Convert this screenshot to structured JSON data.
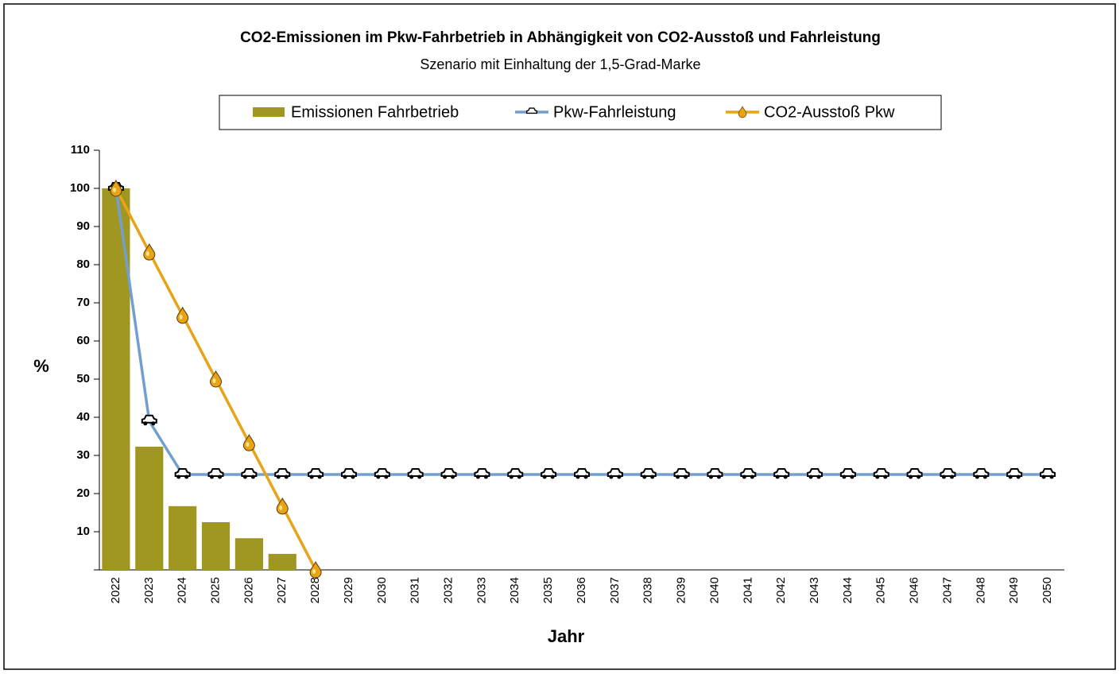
{
  "chart_data": {
    "type": "bar",
    "title": "CO2-Emissionen im Pkw-Fahrbetrieb in Abhängigkeit von CO2-Ausstoß und Fahrleistung",
    "subtitle": "Szenario mit Einhaltung der 1,5-Grad-Marke",
    "x_label": "Jahr",
    "y_label": "%",
    "categories": [
      "2022",
      "2023",
      "2024",
      "2025",
      "2026",
      "2027",
      "2028",
      "2029",
      "2030",
      "2031",
      "2032",
      "2033",
      "2034",
      "2035",
      "2036",
      "2037",
      "2038",
      "2039",
      "2040",
      "2041",
      "2042",
      "2043",
      "2044",
      "2045",
      "2046",
      "2047",
      "2048",
      "2049",
      "2050"
    ],
    "series": [
      {
        "name": "Emissionen Fahrbetrieb",
        "type": "bar",
        "color": "#a09722",
        "values": [
          100,
          32.3,
          16.7,
          12.5,
          8.3,
          4.2,
          0,
          0,
          0,
          0,
          0,
          0,
          0,
          0,
          0,
          0,
          0,
          0,
          0,
          0,
          0,
          0,
          0,
          0,
          0,
          0,
          0,
          0,
          0
        ]
      },
      {
        "name": "Pkw-Fahrleistung",
        "type": "line",
        "marker": "car",
        "color": "#729fcf",
        "values": [
          100,
          39,
          25,
          25,
          25,
          25,
          25,
          25,
          25,
          25,
          25,
          25,
          25,
          25,
          25,
          25,
          25,
          25,
          25,
          25,
          25,
          25,
          25,
          25,
          25,
          25,
          25,
          25,
          25
        ]
      },
      {
        "name": "CO2-Ausstoß Pkw",
        "type": "line",
        "marker": "drop",
        "color": "#e8a317",
        "values": [
          100,
          83.3,
          66.7,
          50,
          33.3,
          16.7,
          0,
          null,
          null,
          null,
          null,
          null,
          null,
          null,
          null,
          null,
          null,
          null,
          null,
          null,
          null,
          null,
          null,
          null,
          null,
          null,
          null,
          null,
          null
        ]
      }
    ],
    "ylim": [
      0,
      110
    ],
    "yticks": [
      10,
      20,
      30,
      40,
      50,
      60,
      70,
      80,
      90,
      100,
      110
    ],
    "grid": false
  }
}
